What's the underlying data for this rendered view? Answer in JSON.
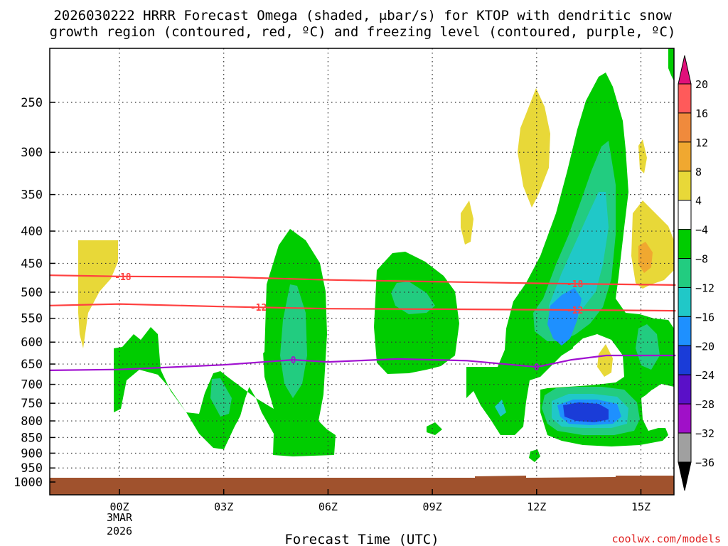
{
  "chart_data": {
    "type": "contour",
    "title_line1": "2026030222 HRRR Forecast Omega (shaded, μbar/s) for KTOP with dendritic snow",
    "title_line2": "growth region (contoured, red, ºC) and freezing level (contoured, purple, ºC)",
    "xlabel": "Forecast Time (UTC)",
    "ylabel": "",
    "x_ticks": [
      {
        "label": "00Z",
        "hour": 0
      },
      {
        "label": "03Z",
        "hour": 3
      },
      {
        "label": "06Z",
        "hour": 6
      },
      {
        "label": "09Z",
        "hour": 9
      },
      {
        "label": "12Z",
        "hour": 12
      },
      {
        "label": "15Z",
        "hour": 15
      }
    ],
    "date_label_1": "3MAR",
    "date_label_2": "2026",
    "xlim": [
      -2,
      16
    ],
    "y_ticks": [
      250,
      300,
      350,
      400,
      450,
      500,
      550,
      600,
      650,
      700,
      750,
      800,
      850,
      900,
      950,
      1000
    ],
    "ylim": [
      200,
      1025
    ],
    "colorbar": {
      "levels": [
        "20",
        "16",
        "12",
        "8",
        "4",
        "−4",
        "−8",
        "−12",
        "−16",
        "−20",
        "−24",
        "−28",
        "−32",
        "−36"
      ],
      "colors": [
        "#ff2a2a",
        "#ff5a5a",
        "#f08a3c",
        "#f0a830",
        "#e8d838",
        "#ffffff",
        "#00cc00",
        "#22cc80",
        "#20c8c8",
        "#1e90ff",
        "#1a3cd8",
        "#5a10c8",
        "#a010c8",
        "#a0a0a0"
      ],
      "top_arrow_color": "#e0107a",
      "bottom_arrow_color": "#000000"
    },
    "dgz_contours": [
      {
        "label": "-18",
        "color": "#ff4040",
        "points": [
          [
            -2,
            470
          ],
          [
            0,
            472
          ],
          [
            3,
            473
          ],
          [
            6,
            478
          ],
          [
            9,
            481
          ],
          [
            12,
            484
          ],
          [
            16,
            487
          ]
        ]
      },
      {
        "label": "-12",
        "color": "#ff4040",
        "points": [
          [
            -2,
            525
          ],
          [
            0,
            522
          ],
          [
            3,
            527
          ],
          [
            6,
            531
          ],
          [
            9,
            532
          ],
          [
            12,
            533
          ],
          [
            16,
            535
          ]
        ]
      }
    ],
    "freezing_level": {
      "label": "0",
      "color": "#a010d0",
      "points": [
        [
          -2,
          665
        ],
        [
          0,
          663
        ],
        [
          3,
          652
        ],
        [
          5,
          640
        ],
        [
          6,
          645
        ],
        [
          8,
          638
        ],
        [
          10,
          642
        ],
        [
          12,
          657
        ],
        [
          13,
          640
        ],
        [
          14,
          630
        ],
        [
          15,
          630
        ],
        [
          16,
          630
        ]
      ]
    },
    "ground_color": "#a0522d",
    "watermark": "coolwx.com/models"
  }
}
